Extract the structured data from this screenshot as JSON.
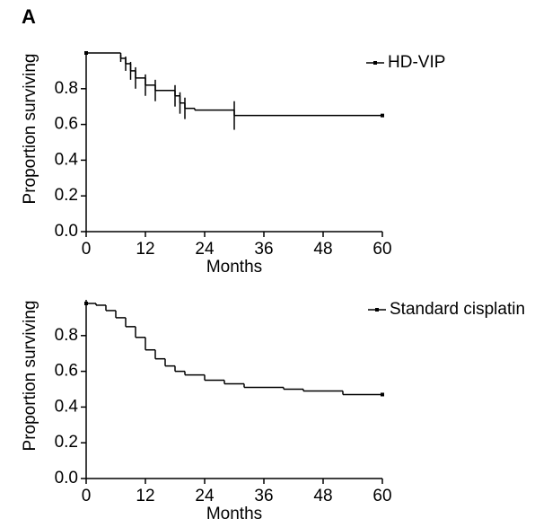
{
  "panel_label": "A",
  "chart_data": [
    {
      "type": "step",
      "ylabel": "Proportion surviving",
      "xlabel": "Months",
      "series": [
        {
          "name": "HD-VIP",
          "color": "#000000",
          "x": [
            0,
            7,
            8,
            9,
            10,
            12,
            14,
            18,
            19,
            20,
            22,
            30,
            60
          ],
          "values": [
            1.0,
            0.97,
            0.94,
            0.9,
            0.86,
            0.82,
            0.79,
            0.76,
            0.72,
            0.69,
            0.68,
            0.65,
            0.65
          ],
          "errors": [
            null,
            0.02,
            0.04,
            0.05,
            0.06,
            0.06,
            0.06,
            0.06,
            0.06,
            0.06,
            null,
            0.08,
            null
          ]
        }
      ],
      "xlim": [
        0,
        60
      ],
      "xticks": [
        0,
        12,
        24,
        36,
        48,
        60
      ],
      "ylim": [
        0,
        1
      ],
      "yticks": [
        {
          "value": 0,
          "label": "0.0"
        },
        0.2,
        0.4,
        0.6,
        0.8
      ]
    },
    {
      "type": "step",
      "ylabel": "Proportion surviving",
      "xlabel": "Months",
      "series": [
        {
          "name": "Standard cisplatin",
          "color": "#000000",
          "x": [
            0,
            2,
            4,
            6,
            8,
            10,
            12,
            14,
            16,
            18,
            20,
            24,
            28,
            32,
            36,
            40,
            44,
            48,
            52,
            56,
            60
          ],
          "values": [
            0.98,
            0.97,
            0.94,
            0.9,
            0.85,
            0.79,
            0.72,
            0.67,
            0.63,
            0.6,
            0.58,
            0.55,
            0.53,
            0.51,
            0.51,
            0.5,
            0.49,
            0.49,
            0.47,
            0.47,
            0.47
          ]
        }
      ],
      "xlim": [
        0,
        60
      ],
      "xticks": [
        0,
        12,
        24,
        36,
        48,
        60
      ],
      "ylim": [
        0,
        1
      ],
      "yticks": [
        {
          "value": 0,
          "label": "0.0"
        },
        0.2,
        0.4,
        0.6,
        0.8
      ]
    }
  ]
}
